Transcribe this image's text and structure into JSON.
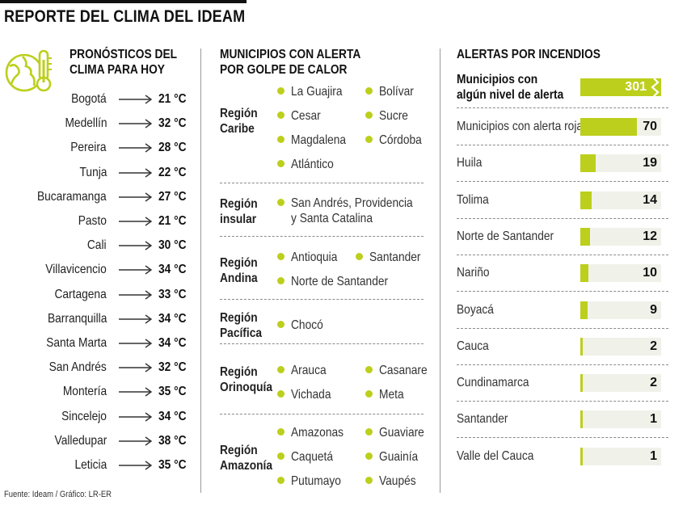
{
  "title": "REPORTE DEL CLIMA DEL IDEAM",
  "source": "Fuente: Ideam / Gráfico: LR-ER",
  "forecast": {
    "heading_1": "PRONÓSTICOS DEL",
    "heading_2": "CLIMA PARA HOY",
    "cities": [
      {
        "city": "Bogotá",
        "temp": "21 °C"
      },
      {
        "city": "Medellín",
        "temp": "32 °C"
      },
      {
        "city": "Pereira",
        "temp": "28 °C"
      },
      {
        "city": "Tunja",
        "temp": "22 °C"
      },
      {
        "city": "Bucaramanga",
        "temp": "27 °C"
      },
      {
        "city": "Pasto",
        "temp": "21 °C"
      },
      {
        "city": "Cali",
        "temp": "30 °C"
      },
      {
        "city": "Villavicencio",
        "temp": "34 °C"
      },
      {
        "city": "Cartagena",
        "temp": "33 °C"
      },
      {
        "city": "Barranquilla",
        "temp": "34 °C"
      },
      {
        "city": "Santa Marta",
        "temp": "34 °C"
      },
      {
        "city": "San Andrés",
        "temp": "32 °C"
      },
      {
        "city": "Montería",
        "temp": "35 °C"
      },
      {
        "city": "Sincelejo",
        "temp": "34 °C"
      },
      {
        "city": "Valledupar",
        "temp": "38 °C"
      },
      {
        "city": "Leticia",
        "temp": "35 °C"
      }
    ]
  },
  "heat": {
    "heading_1": "MUNICIPIOS CON ALERTA",
    "heading_2": "POR GOLPE DE CALOR",
    "regions": [
      {
        "name_1": "Región",
        "name_2": "Caribe",
        "municipios": [
          "La Guajira",
          "Bolívar",
          "Cesar",
          "Sucre",
          "Magdalena",
          "Córdoba",
          "Atlántico"
        ]
      },
      {
        "name_1": "Región",
        "name_2": "insular",
        "municipios": [
          "San Andrés, Providencia",
          "y Santa Catalina"
        ]
      },
      {
        "name_1": "Región",
        "name_2": "Andina",
        "municipios": [
          "Antioquia",
          "Santander",
          "Norte de Santander"
        ]
      },
      {
        "name_1": "Región",
        "name_2": "Pacífica",
        "municipios": [
          "Chocó"
        ]
      },
      {
        "name_1": "Región",
        "name_2": "Orinoquía",
        "municipios": [
          "Arauca",
          "Casanare",
          "Vichada",
          "Meta"
        ]
      },
      {
        "name_1": "Región",
        "name_2": "Amazonía",
        "municipios": [
          "Amazonas",
          "Guaviare",
          "Caquetá",
          "Guainía",
          "Putumayo",
          "Vaupés"
        ]
      }
    ]
  },
  "fires": {
    "heading": "ALERTAS POR INCENDIOS",
    "total_label_1": "Municipios con",
    "total_label_2": "algún nivel de alerta",
    "total_value": "301"
  },
  "colors": {
    "accent": "#bccf1c",
    "bar_bg": "#f0f2ea"
  },
  "chart_data": {
    "type": "bar",
    "categories": [
      "Municipios con alerta roja",
      "Huila",
      "Tolima",
      "Norte de Santander",
      "Nariño",
      "Boyacá",
      "Cauca",
      "Cundinamarca",
      "Santander",
      "Valle del Cauca"
    ],
    "values": [
      70,
      19,
      14,
      12,
      10,
      9,
      2,
      2,
      1,
      1
    ]
  }
}
